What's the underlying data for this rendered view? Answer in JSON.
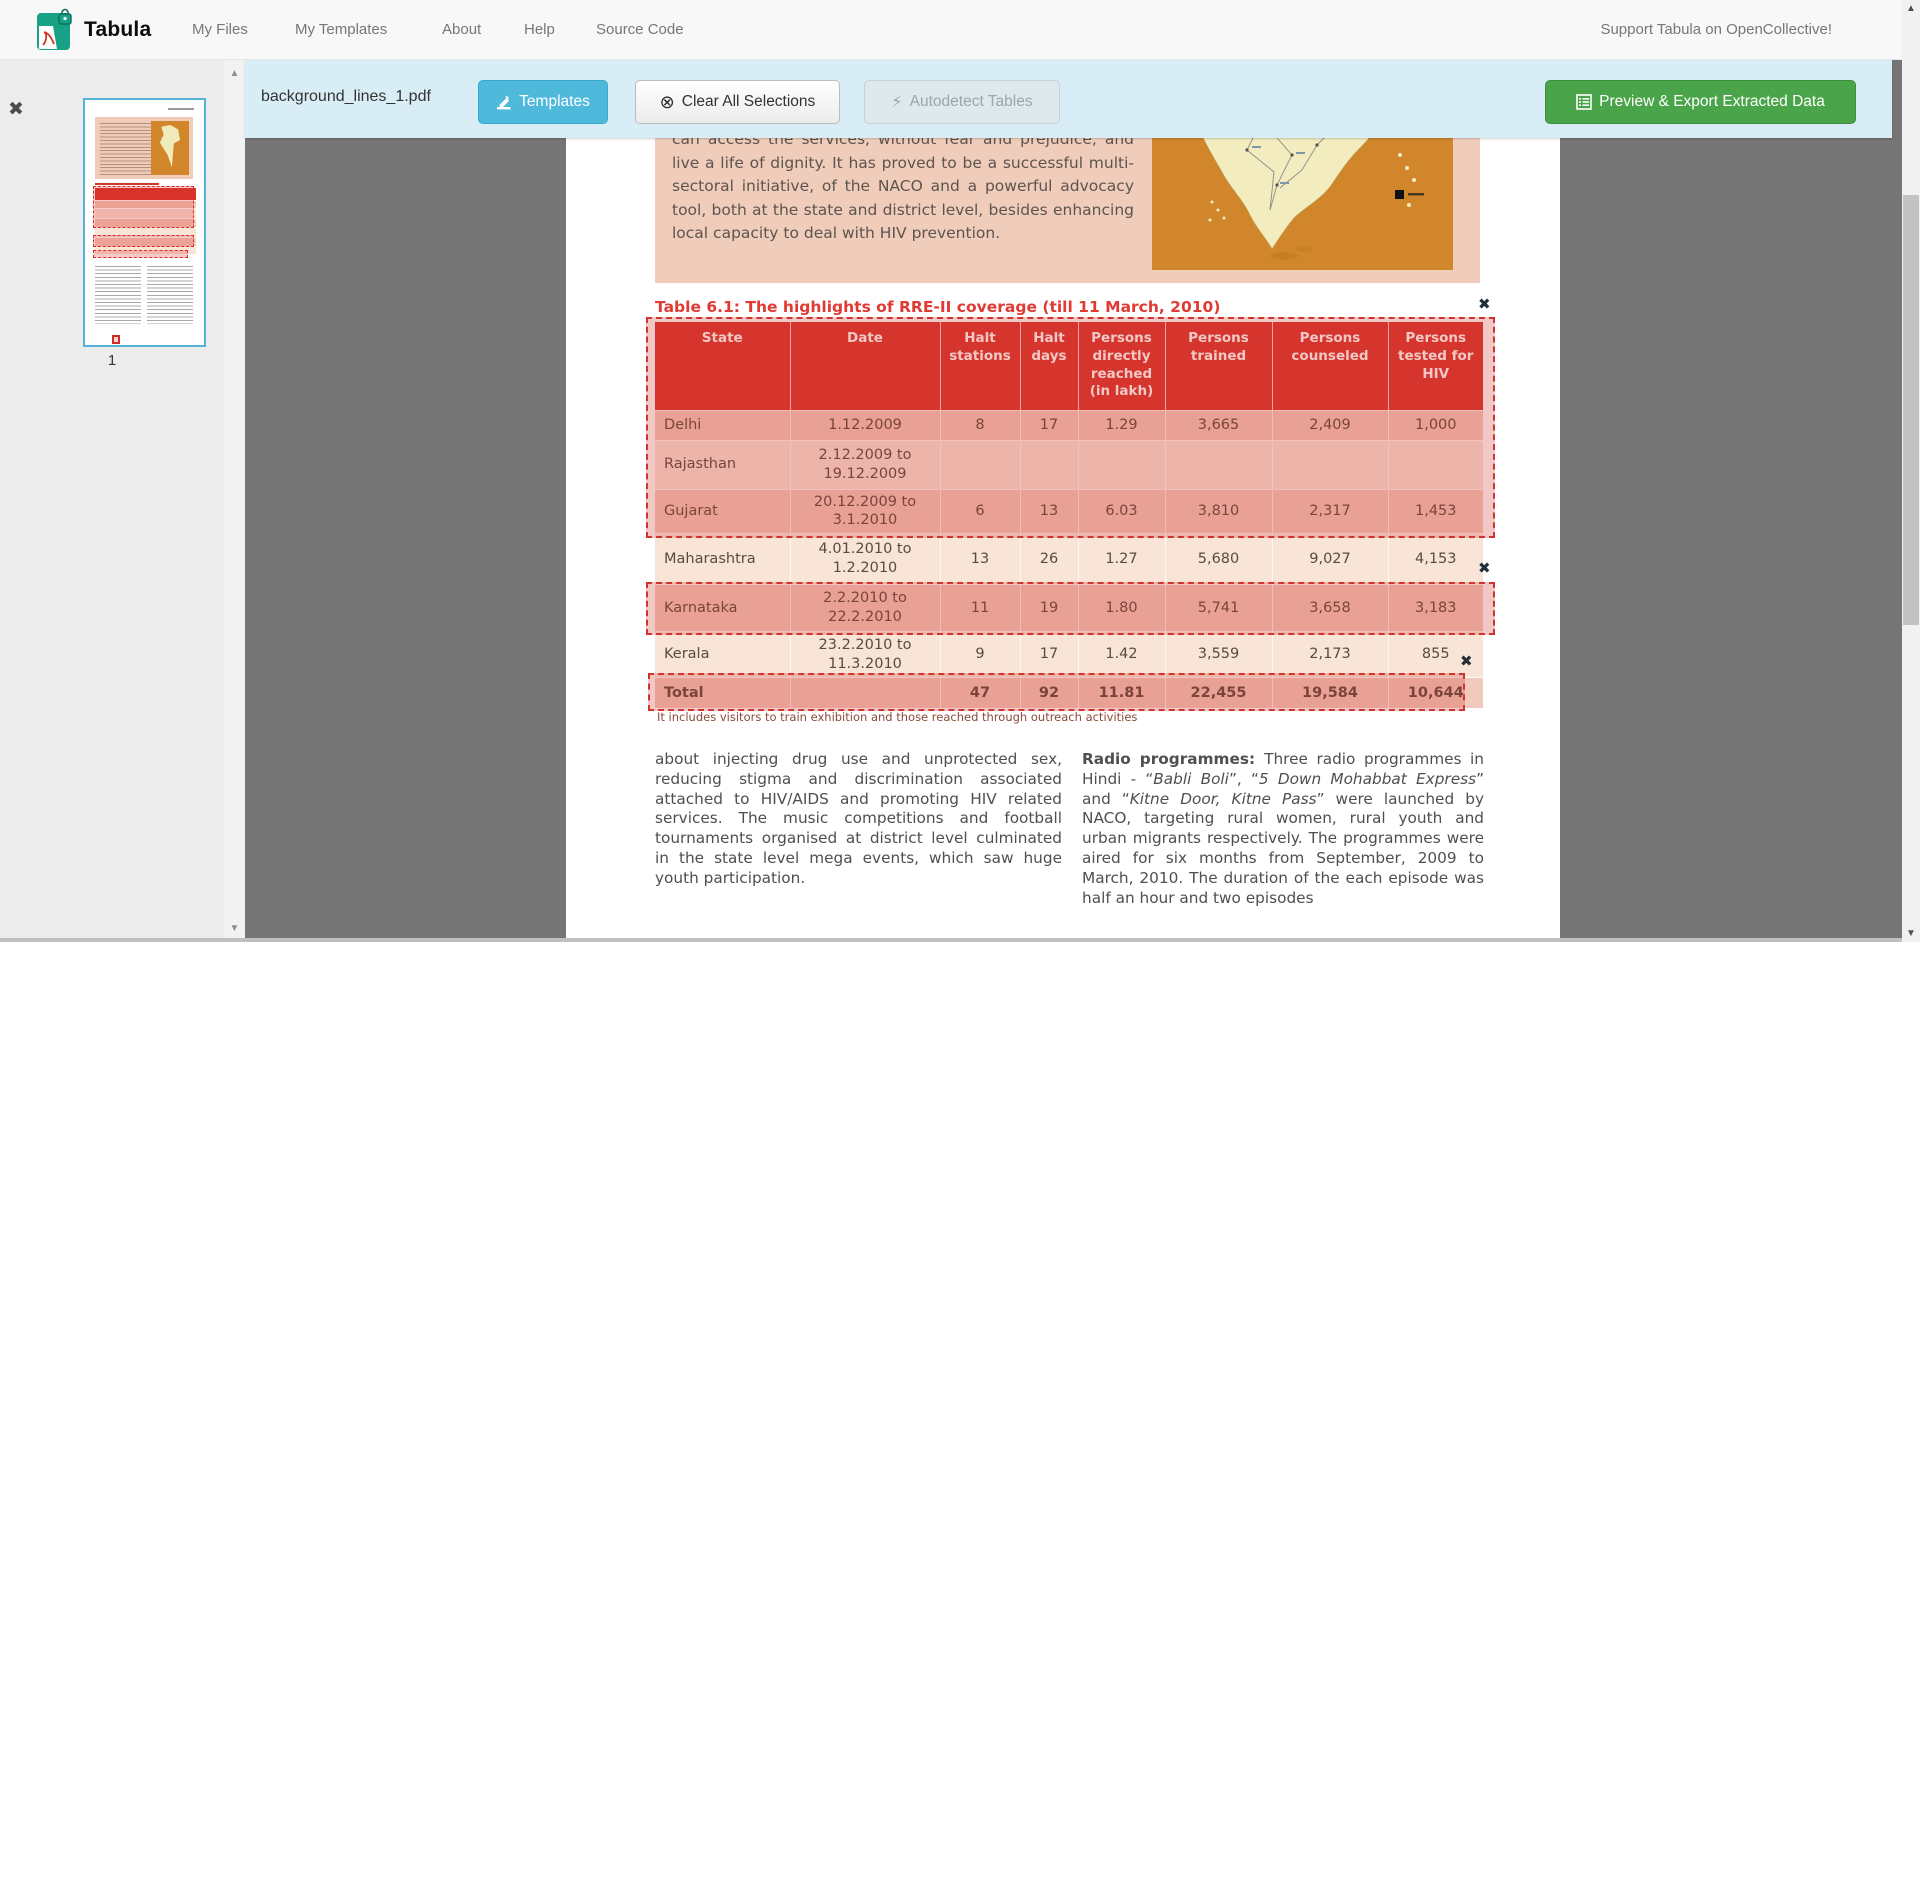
{
  "navbar": {
    "brand": "Tabula",
    "items": [
      "My Files",
      "My Templates",
      "About",
      "Help",
      "Source Code"
    ],
    "support_link": "Support Tabula on OpenCollective!"
  },
  "toolbar": {
    "filename": "background_lines_1.pdf",
    "templates_button": "Templates",
    "clear_button": "Clear All Selections",
    "autodetect_button": "Autodetect Tables",
    "export_button": "Preview & Export Extracted Data"
  },
  "sidebar": {
    "page_label": "1"
  },
  "icons": {
    "close_thumbnail": "✖",
    "remove_selection": "✖",
    "scroll_up": "▲",
    "scroll_down": "▼",
    "clear_selections": "⊗",
    "autodetect_bolt": "⚡"
  },
  "colors": {
    "toolbar_bg": "#d9edf7",
    "templates_button": "#4fb9dc",
    "export_button": "#4aa54a",
    "selection_red": "#d0342c",
    "table_header_red": "#d7362c",
    "canvas_gray": "#757575"
  },
  "document": {
    "intro_paragraph": "can access the services, without fear and prejudice, and live a life of dignity. It has proved to be a successful multi-sectoral initiative, of the NACO and a powerful advocacy tool, both at the state and district level, besides enhancing local capacity to deal with HIV prevention.",
    "table_title": "Table 6.1: The highlights of RRE-II coverage (till 11 March, 2010)",
    "table": {
      "headers": [
        "State",
        "Date",
        "Halt stations",
        "Halt days",
        "Persons directly reached (in lakh)",
        "Persons trained",
        "Persons counseled",
        "Persons tested for HIV"
      ],
      "rows": [
        [
          "Delhi",
          "1.12.2009",
          "8",
          "17",
          "1.29",
          "3,665",
          "2,409",
          "1,000"
        ],
        [
          "Rajasthan",
          "2.12.2009 to 19.12.2009",
          "",
          "",
          "",
          "",
          "",
          ""
        ],
        [
          "Gujarat",
          "20.12.2009 to 3.1.2010",
          "6",
          "13",
          "6.03",
          "3,810",
          "2,317",
          "1,453"
        ],
        [
          "Maharashtra",
          "4.01.2010 to 1.2.2010",
          "13",
          "26",
          "1.27",
          "5,680",
          "9,027",
          "4,153"
        ],
        [
          "Karnataka",
          "2.2.2010 to 22.2.2010",
          "11",
          "19",
          "1.80",
          "5,741",
          "3,658",
          "3,183"
        ],
        [
          "Kerala",
          "23.2.2010 to 11.3.2010",
          "9",
          "17",
          "1.42",
          "3,559",
          "2,173",
          "855"
        ],
        [
          "Total",
          "",
          "47",
          "92",
          "11.81",
          "22,455",
          "19,584",
          "10,644"
        ]
      ]
    },
    "footnote": "It includes visitors to train exhibition and those reached through outreach activities",
    "left_column": "about injecting drug use and unprotected sex, reducing stigma and discrimination associated attached to HIV/AIDS and promoting HIV related services. The music competitions and football tournaments organised at district level culminated in the state level mega events, which saw huge youth participation.",
    "right_column_segments": [
      {
        "text": "Radio programmes: ",
        "bold": true
      },
      {
        "text": "Three radio programmes in Hindi - “"
      },
      {
        "text": "Babli Boli",
        "italic": true
      },
      {
        "text": "”, “"
      },
      {
        "text": "5 Down Mohabbat Express",
        "italic": true
      },
      {
        "text": "” and “"
      },
      {
        "text": "Kitne Door, Kitne Pass",
        "italic": true
      },
      {
        "text": "” were launched by NACO, targeting rural women, rural youth and urban migrants respectively. The programmes were aired for six months from September, 2009 to March, 2010. The duration of the each episode was half an hour and two episodes"
      }
    ]
  }
}
